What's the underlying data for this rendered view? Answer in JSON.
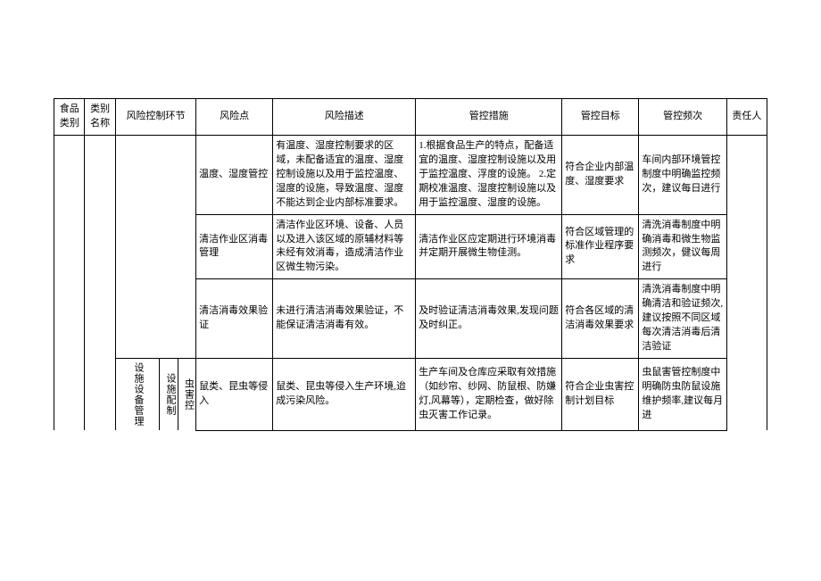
{
  "header": {
    "c_food": "食品类别",
    "c_catname": "类别名称",
    "c_link": "风险控制环节",
    "c_risk": "风险点",
    "c_desc": "风险描述",
    "c_measure": "管控措施",
    "c_target": "管控目标",
    "c_freq": "管控频次",
    "c_resp": "责任人"
  },
  "section": {
    "link": "设施设备管理",
    "sub1": "设施配制",
    "sub2": "虫害控"
  },
  "rows": [
    {
      "risk": "温度、湿度管控",
      "desc": "有温度、湿度控制要求的区域，未配备适宜的温度、湿度控制设施以及用于监控温度、湿度的设施，导致温度、湿度不能达到企业内部标准要求。",
      "measure": "1.根据食品生产的特点，配备适宜的温度、湿度控制设施以及用于监控温度、浮度的设施。\n2.定期校准温度、湿度控制设施以及用于监控温度、湿度的设施。",
      "target": "符合企业内部温度、湿度要求",
      "freq": "车间内部环境管控制度中明确监控频次，建议每日进行"
    },
    {
      "risk": "清洁作业区消毒管理",
      "desc": "清洁作业区环境、设备、人员以及进入该区域的原辅材料等未经有效消毒，造成清洁作业区微生物污染。",
      "measure": "清洁作业区应定期进行环境消毒并定期开展微生物佳测。",
      "target": "符合区域管理的标准作业程序要求",
      "freq": "清洗消毒制度中明确消毒和微生物监测频次，健议每周进行"
    },
    {
      "risk": "清洁消毒效果验证",
      "desc": "未进行清洁消毒效果验证，不能保证清洁消毒有效。",
      "measure": "及时验证清洁消毒效果,发现问题及时纠正。",
      "target": "符合各区域的清洁消毒效果要求",
      "freq": "清洗消毒制度中明确清洁和验证频次,建议按照不同区域每次清洁消毒后清洁验证"
    },
    {
      "risk": "鼠类、昆虫等侵入",
      "desc": "鼠类、昆虫等侵入生产环境,迨成污染风险。",
      "measure": "生产车间及仓库应采取有效措施（如纱帘、纱网、防鼠根、防嫌灯,风幕等），定期检查，做好除虫灭害工作记录。",
      "target": "符合企业虫害控制计划目标",
      "freq": "虫鼠害管控制度中明确防虫防鼠设施维护频率,建议每月进"
    }
  ]
}
